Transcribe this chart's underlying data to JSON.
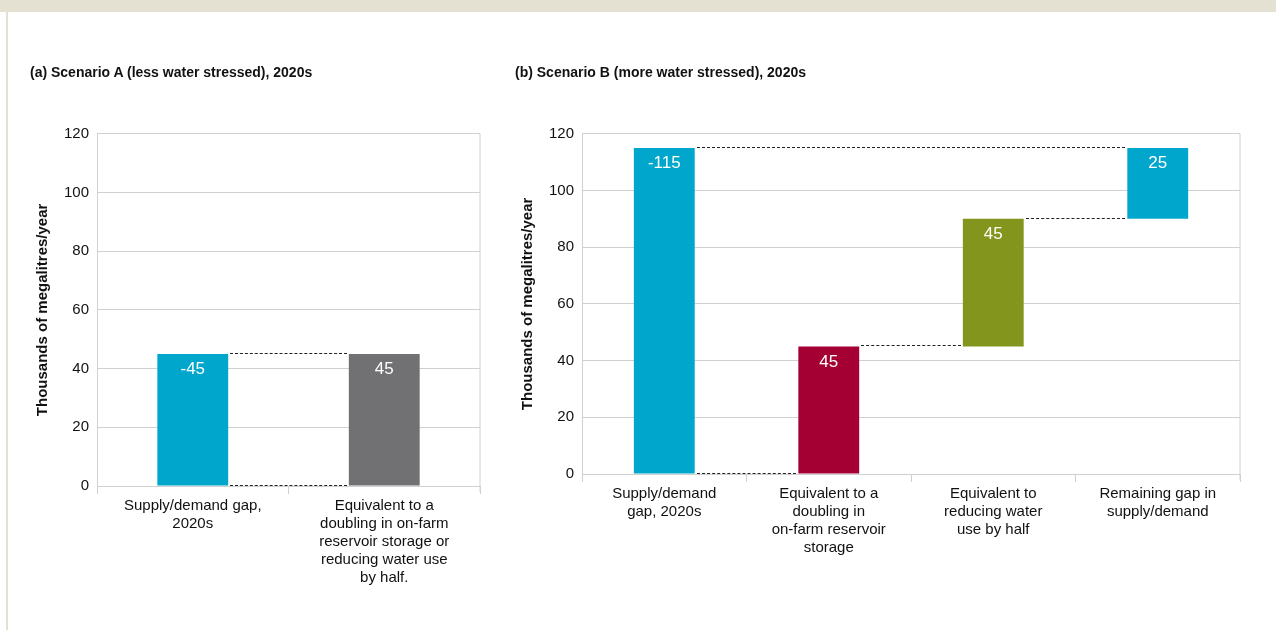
{
  "chart_data": [
    {
      "type": "bar",
      "title": "(a) Scenario A (less water stressed), 2020s",
      "ylabel": "Thousands of megalitres/year",
      "categories": [
        "Supply/demand gap, 2020s",
        "Equivalent to a doubling in on-farm reservoir storage or reducing water use by half."
      ],
      "values": [
        -45,
        45
      ],
      "base": [
        45,
        0
      ],
      "colors": [
        "#00a6cb",
        "#717174"
      ],
      "value_labels": [
        "-45",
        "45"
      ],
      "ylim": [
        0,
        120
      ],
      "yticks": [
        0,
        20,
        40,
        60,
        80,
        100,
        120
      ],
      "grid": "y"
    },
    {
      "type": "bar",
      "title": "(b) Scenario B (more water stressed), 2020s",
      "ylabel": "Thousands of megalitres/year",
      "categories": [
        "Supply/demand gap, 2020s",
        "Equivalent to a doubling in on-farm reservoir storage",
        "Equivalent to reducing water use by half",
        "Remaining gap in supply/demand"
      ],
      "values": [
        -115,
        45,
        45,
        25
      ],
      "base": [
        115,
        0,
        45,
        90
      ],
      "colors": [
        "#00a6cb",
        "#a50034",
        "#84951e",
        "#00a6cb"
      ],
      "value_labels": [
        "-115",
        "45",
        "45",
        "25"
      ],
      "ylim": [
        0,
        120
      ],
      "yticks": [
        0,
        20,
        40,
        60,
        80,
        100,
        120
      ],
      "grid": "y"
    }
  ]
}
